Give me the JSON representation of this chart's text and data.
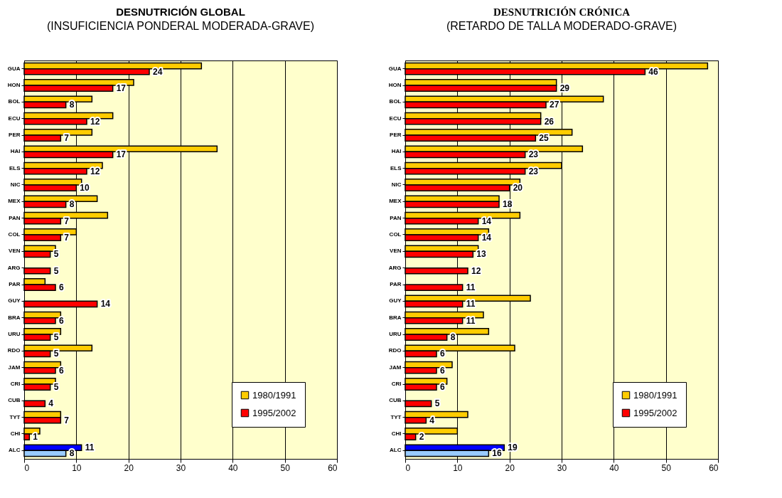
{
  "chart_data": [
    {
      "type": "bar",
      "orientation": "horizontal",
      "title": "DESNUTRICIÓN GLOBAL",
      "subtitle": "(INSUFICIENCIA PONDERAL MODERADA-GRAVE)",
      "categories": [
        "GUA",
        "HON",
        "BOL",
        "ECU",
        "PER",
        "HAI",
        "ELS",
        "NIC",
        "MEX",
        "PAN",
        "COL",
        "VEN",
        "ARG",
        "PAR",
        "GUY",
        "BRA",
        "URU",
        "RDO",
        "JAM",
        "CRI",
        "CUB",
        "TYT",
        "CHI",
        "ALC"
      ],
      "series": [
        {
          "name": "1980/1991",
          "color": "#ffcc00",
          "colors": [
            null,
            null,
            null,
            null,
            null,
            null,
            null,
            null,
            null,
            null,
            null,
            null,
            null,
            null,
            null,
            null,
            null,
            null,
            null,
            null,
            null,
            null,
            null,
            "#0000ff"
          ],
          "values": [
            34,
            21,
            13,
            17,
            13,
            37,
            15,
            11,
            14,
            16,
            10,
            6,
            null,
            4,
            null,
            7,
            7,
            13,
            7,
            6,
            null,
            7,
            3,
            11
          ],
          "value_labels": [
            null,
            null,
            null,
            null,
            null,
            null,
            null,
            null,
            null,
            null,
            null,
            null,
            null,
            null,
            null,
            null,
            null,
            null,
            null,
            null,
            null,
            null,
            null,
            "11"
          ]
        },
        {
          "name": "1995/2002",
          "color": "#ff0000",
          "colors": [
            null,
            null,
            null,
            null,
            null,
            null,
            null,
            null,
            null,
            null,
            null,
            null,
            null,
            null,
            null,
            null,
            null,
            null,
            null,
            null,
            null,
            null,
            null,
            "#99ccff"
          ],
          "values": [
            24,
            17,
            8,
            12,
            7,
            17,
            12,
            10,
            8,
            7,
            7,
            5,
            5,
            6,
            14,
            6,
            5,
            5,
            6,
            5,
            4,
            7,
            1,
            8
          ],
          "value_labels": [
            "24",
            "17",
            "8",
            "12",
            "7",
            "17",
            "12",
            "10",
            "8",
            "7",
            "7",
            "5",
            "5",
            "6",
            "14",
            "6",
            "5",
            "5",
            "6",
            "5",
            "4",
            "7",
            "1",
            "8"
          ]
        }
      ],
      "xlim": [
        0,
        60
      ],
      "xticks": [
        0,
        10,
        20,
        30,
        40,
        50,
        60
      ],
      "grid": "x",
      "legend": "bottom right"
    },
    {
      "type": "bar",
      "orientation": "horizontal",
      "title": "DESNUTRICIÓN CRÓNICA",
      "subtitle": "(RETARDO DE TALLA MODERADO-GRAVE)",
      "categories": [
        "GUA",
        "HON",
        "BOL",
        "ECU",
        "PER",
        "HAI",
        "ELS",
        "NIC",
        "MEX",
        "PAN",
        "COL",
        "VEN",
        "ARG",
        "PAR",
        "GUY",
        "BRA",
        "URU",
        "RDO",
        "JAM",
        "CRI",
        "CUB",
        "TYT",
        "CHI",
        "ALC"
      ],
      "series": [
        {
          "name": "1980/1991",
          "color": "#ffcc00",
          "colors": [
            null,
            null,
            null,
            null,
            null,
            null,
            null,
            null,
            null,
            null,
            null,
            null,
            null,
            null,
            null,
            null,
            null,
            null,
            null,
            null,
            null,
            null,
            null,
            "#0000ff"
          ],
          "values": [
            58,
            29,
            38,
            26,
            32,
            34,
            30,
            22,
            18,
            22,
            16,
            14,
            null,
            null,
            24,
            15,
            16,
            21,
            9,
            8,
            null,
            12,
            10,
            19
          ],
          "value_labels": [
            null,
            null,
            null,
            null,
            null,
            null,
            null,
            null,
            null,
            null,
            null,
            null,
            null,
            null,
            null,
            null,
            null,
            null,
            null,
            null,
            null,
            null,
            null,
            "19"
          ]
        },
        {
          "name": "1995/2002",
          "color": "#ff0000",
          "colors": [
            null,
            null,
            null,
            null,
            null,
            null,
            null,
            null,
            null,
            null,
            null,
            null,
            null,
            null,
            null,
            null,
            null,
            null,
            null,
            null,
            null,
            null,
            null,
            "#99ccff"
          ],
          "values": [
            46,
            29,
            27,
            26,
            25,
            23,
            23,
            20,
            18,
            14,
            14,
            13,
            12,
            11,
            11,
            11,
            8,
            6,
            6,
            6,
            5,
            4,
            2,
            16
          ],
          "value_labels": [
            "46",
            "29",
            "27",
            "26",
            "25",
            "23",
            "23",
            "20",
            "18",
            "14",
            "14",
            "13",
            "12",
            "11",
            "11",
            "11",
            "8",
            "6",
            "6",
            "6",
            "5",
            "4",
            "2",
            "16"
          ]
        }
      ],
      "xlim": [
        0,
        60
      ],
      "xticks": [
        0,
        10,
        20,
        30,
        40,
        50,
        60
      ],
      "grid": "x",
      "legend": "bottom right"
    }
  ]
}
